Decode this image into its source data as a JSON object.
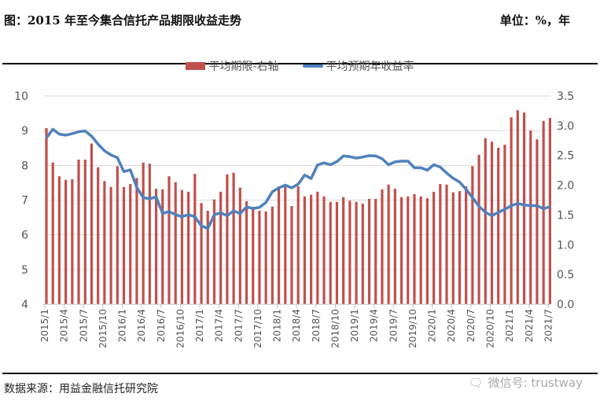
{
  "header": {
    "title": "图：2015 年至今集合信托产品期限收益走势",
    "unit": "单位：%，年"
  },
  "footer": {
    "source": "数据来源：用益金融信托研究院",
    "watermark": "微信号: trustway"
  },
  "colors": {
    "bar": "#c0504d",
    "line": "#4f81bd",
    "grid": "#d9d9d9"
  },
  "chart_data": {
    "type": "bar+line",
    "legend_position": "top",
    "grid": true,
    "x": [
      "2015/1",
      "2015/2",
      "2015/3",
      "2015/4",
      "2015/5",
      "2015/6",
      "2015/7",
      "2015/8",
      "2015/9",
      "2015/10",
      "2015/11",
      "2015/12",
      "2016/1",
      "2016/2",
      "2016/3",
      "2016/4",
      "2016/5",
      "2016/6",
      "2016/7",
      "2016/8",
      "2016/9",
      "2016/10",
      "2016/11",
      "2016/12",
      "2017/1",
      "2017/2",
      "2017/3",
      "2017/4",
      "2017/5",
      "2017/6",
      "2017/7",
      "2017/8",
      "2017/9",
      "2017/10",
      "2017/11",
      "2017/12",
      "2018/1",
      "2018/2",
      "2018/3",
      "2018/4",
      "2018/5",
      "2018/6",
      "2018/7",
      "2018/8",
      "2018/9",
      "2018/10",
      "2018/11",
      "2018/12",
      "2019/1",
      "2019/2",
      "2019/3",
      "2019/4",
      "2019/5",
      "2019/6",
      "2019/7",
      "2019/8",
      "2019/9",
      "2019/10",
      "2019/11",
      "2019/12",
      "2020/1",
      "2020/2",
      "2020/3",
      "2020/4",
      "2020/5",
      "2020/6",
      "2020/7",
      "2020/8",
      "2020/9",
      "2020/10",
      "2020/11",
      "2020/12",
      "2021/1",
      "2021/2",
      "2021/3",
      "2021/4",
      "2021/5",
      "2021/6",
      "2021/7"
    ],
    "x_tick_labels": [
      "2015/1",
      "2015/4",
      "2015/7",
      "2015/10",
      "2016/1",
      "2016/4",
      "2016/7",
      "2016/10",
      "2017/1",
      "2017/4",
      "2017/7",
      "2017/10",
      "2018/1",
      "2018/4",
      "2018/7",
      "2018/10",
      "2019/1",
      "2019/4",
      "2019/7",
      "2019/10",
      "2020/1",
      "2020/4",
      "2020/7",
      "2020/10",
      "2021/1",
      "2021/4",
      "2021/7"
    ],
    "left_axis": {
      "min": 4,
      "max": 10,
      "ticks": [
        "4",
        "5",
        "6",
        "7",
        "8",
        "9",
        "10"
      ]
    },
    "right_axis": {
      "min": 0,
      "max": 3.5,
      "ticks": [
        "0.0",
        "0.5",
        "1.0",
        "1.5",
        "2.0",
        "2.5",
        "3.0",
        "3.5"
      ]
    },
    "series": [
      {
        "name": "平均期限-右轴",
        "type": "bar",
        "axis": "right",
        "values": [
          2.96,
          2.38,
          2.15,
          2.09,
          2.1,
          2.43,
          2.43,
          2.7,
          2.3,
          2.07,
          1.97,
          2.32,
          1.97,
          2.02,
          2.12,
          2.38,
          2.36,
          1.94,
          1.93,
          2.15,
          2.05,
          1.92,
          1.89,
          2.19,
          1.7,
          1.57,
          1.76,
          1.89,
          2.18,
          2.21,
          1.96,
          1.73,
          1.6,
          1.57,
          1.56,
          1.64,
          1.98,
          1.99,
          1.65,
          1.98,
          1.81,
          1.84,
          1.89,
          1.81,
          1.72,
          1.72,
          1.8,
          1.74,
          1.72,
          1.69,
          1.77,
          1.77,
          1.93,
          2.01,
          1.94,
          1.8,
          1.81,
          1.85,
          1.81,
          1.78,
          1.89,
          2.02,
          2.01,
          1.88,
          1.9,
          1.98,
          2.32,
          2.51,
          2.79,
          2.73,
          2.63,
          2.68,
          3.14,
          3.26,
          3.22,
          2.92,
          2.77,
          3.08,
          3.13
        ]
      },
      {
        "name": "平均预期年收益率",
        "type": "line",
        "axis": "left",
        "values": [
          8.79,
          9.04,
          8.9,
          8.87,
          8.91,
          8.97,
          8.99,
          8.84,
          8.61,
          8.42,
          8.3,
          8.22,
          7.82,
          7.87,
          7.37,
          7.07,
          7.04,
          7.09,
          6.61,
          6.67,
          6.58,
          6.52,
          6.58,
          6.52,
          6.26,
          6.18,
          6.58,
          6.63,
          6.55,
          6.69,
          6.61,
          6.8,
          6.76,
          6.79,
          6.93,
          7.24,
          7.35,
          7.43,
          7.35,
          7.46,
          7.72,
          7.62,
          8.01,
          8.07,
          8.02,
          8.11,
          8.27,
          8.25,
          8.21,
          8.24,
          8.28,
          8.27,
          8.19,
          8.02,
          8.1,
          8.12,
          8.12,
          7.93,
          7.93,
          7.86,
          8.02,
          7.95,
          7.78,
          7.63,
          7.52,
          7.31,
          7.07,
          6.82,
          6.65,
          6.55,
          6.65,
          6.73,
          6.84,
          6.9,
          6.86,
          6.84,
          6.84,
          6.75,
          6.81
        ]
      }
    ]
  }
}
